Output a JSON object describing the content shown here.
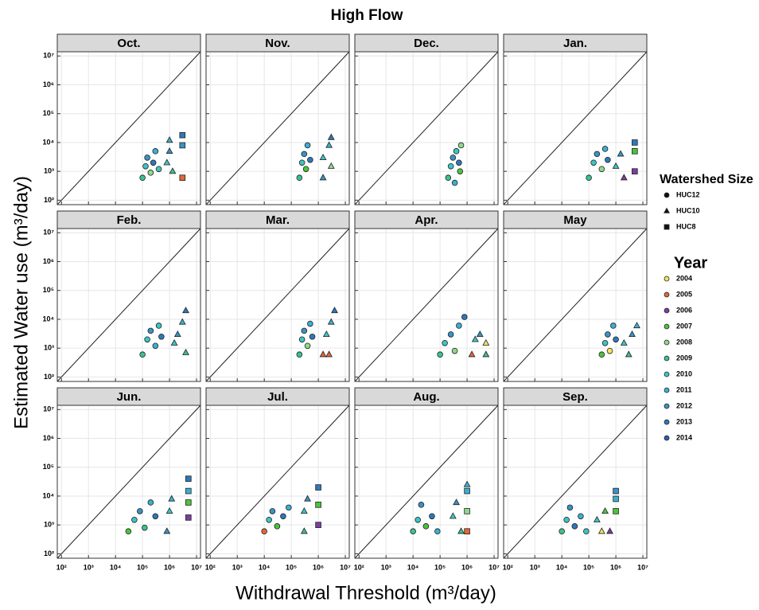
{
  "chart_data": {
    "type": "scatter",
    "title": "High Flow",
    "x_label": "Withdrawal Threshold (m³/day)",
    "y_label": "Estimated Water use (m³/day)",
    "log_scale": true,
    "grid": true,
    "diagonal": true,
    "xlim": [
      70,
      14000000
    ],
    "ylim": [
      70,
      14000000
    ],
    "xticks": [
      {
        "value": 100,
        "label": "10²"
      },
      {
        "value": 1000,
        "label": "10³"
      },
      {
        "value": 10000,
        "label": "10⁴"
      },
      {
        "value": 100000,
        "label": "10⁵"
      },
      {
        "value": 1000000,
        "label": "10⁶"
      },
      {
        "value": 10000000,
        "label": "10⁷"
      }
    ],
    "yticks": [
      {
        "value": 100,
        "label": "10²"
      },
      {
        "value": 1000,
        "label": "10³"
      },
      {
        "value": 10000,
        "label": "10⁴"
      },
      {
        "value": 100000,
        "label": "10⁵"
      },
      {
        "value": 1000000,
        "label": "10⁶"
      },
      {
        "value": 10000000,
        "label": "10⁷"
      }
    ],
    "legend_watershed": {
      "title": "Watershed Size",
      "items": [
        {
          "name": "HUC12",
          "shape": "circle"
        },
        {
          "name": "HUC10",
          "shape": "triangle"
        },
        {
          "name": "HUC8",
          "shape": "square"
        }
      ]
    },
    "legend_year": {
      "title": "Year",
      "items": [
        {
          "name": "2004",
          "color": "#f2e35e"
        },
        {
          "name": "2005",
          "color": "#e0673a"
        },
        {
          "name": "2006",
          "color": "#7b3fa0"
        },
        {
          "name": "2007",
          "color": "#4cc43a"
        },
        {
          "name": "2008",
          "color": "#8fd98a"
        },
        {
          "name": "2009",
          "color": "#3cc08f"
        },
        {
          "name": "2010",
          "color": "#3cc4c4"
        },
        {
          "name": "2011",
          "color": "#3ab0d0"
        },
        {
          "name": "2012",
          "color": "#3a92c4"
        },
        {
          "name": "2013",
          "color": "#2f78b8"
        },
        {
          "name": "2014",
          "color": "#2a5ea8"
        }
      ]
    },
    "panels": [
      {
        "title": "Oct.",
        "points": [
          [
            100000,
            600,
            "HUC12",
            "2009"
          ],
          [
            130000,
            1500,
            "HUC12",
            "2010"
          ],
          [
            150000,
            3000,
            "HUC12",
            "2012"
          ],
          [
            200000,
            900,
            "HUC12",
            "2008"
          ],
          [
            250000,
            2000,
            "HUC12",
            "2013"
          ],
          [
            300000,
            5000,
            "HUC12",
            "2011"
          ],
          [
            400000,
            1200,
            "HUC12",
            "2010"
          ],
          [
            800000,
            2000,
            "HUC10",
            "2010"
          ],
          [
            1000000,
            5000,
            "HUC10",
            "2012"
          ],
          [
            1000000,
            12000,
            "HUC10",
            "2011"
          ],
          [
            1300000,
            1000,
            "HUC10",
            "2009"
          ],
          [
            3000000,
            600,
            "HUC8",
            "2005"
          ],
          [
            3000000,
            8000,
            "HUC8",
            "2012"
          ],
          [
            3000000,
            18000,
            "HUC8",
            "2013"
          ]
        ]
      },
      {
        "title": "Nov.",
        "points": [
          [
            200000,
            600,
            "HUC12",
            "2009"
          ],
          [
            250000,
            2000,
            "HUC12",
            "2010"
          ],
          [
            300000,
            4000,
            "HUC12",
            "2012"
          ],
          [
            350000,
            1200,
            "HUC12",
            "2007"
          ],
          [
            400000,
            8000,
            "HUC12",
            "2011"
          ],
          [
            500000,
            2500,
            "HUC12",
            "2013"
          ],
          [
            1500000,
            600,
            "HUC10",
            "2012"
          ],
          [
            1500000,
            3000,
            "HUC10",
            "2010"
          ],
          [
            2500000,
            8000,
            "HUC10",
            "2011"
          ],
          [
            3000000,
            15000,
            "HUC10",
            "2013"
          ],
          [
            3000000,
            1500,
            "HUC10",
            "2008"
          ]
        ]
      },
      {
        "title": "Dec.",
        "points": [
          [
            200000,
            600,
            "HUC12",
            "2009"
          ],
          [
            250000,
            1500,
            "HUC12",
            "2010"
          ],
          [
            300000,
            3000,
            "HUC12",
            "2012"
          ],
          [
            350000,
            400,
            "HUC12",
            "2011"
          ],
          [
            400000,
            5000,
            "HUC12",
            "2010"
          ],
          [
            500000,
            2000,
            "HUC12",
            "2013"
          ],
          [
            600000,
            8000,
            "HUC12",
            "2008"
          ],
          [
            550000,
            1000,
            "HUC12",
            "2007"
          ]
        ]
      },
      {
        "title": "Jan.",
        "points": [
          [
            100000,
            600,
            "HUC12",
            "2009"
          ],
          [
            150000,
            2000,
            "HUC12",
            "2010"
          ],
          [
            200000,
            4000,
            "HUC12",
            "2012"
          ],
          [
            300000,
            1200,
            "HUC12",
            "2008"
          ],
          [
            400000,
            6000,
            "HUC12",
            "2011"
          ],
          [
            500000,
            2500,
            "HUC12",
            "2013"
          ],
          [
            1000000,
            1500,
            "HUC10",
            "2010"
          ],
          [
            1500000,
            4000,
            "HUC10",
            "2012"
          ],
          [
            2000000,
            600,
            "HUC10",
            "2006"
          ],
          [
            5000000,
            1000,
            "HUC8",
            "2006"
          ],
          [
            5000000,
            5000,
            "HUC8",
            "2007"
          ],
          [
            5000000,
            10000,
            "HUC8",
            "2013"
          ]
        ]
      },
      {
        "title": "Feb.",
        "points": [
          [
            100000,
            600,
            "HUC12",
            "2009"
          ],
          [
            150000,
            2000,
            "HUC12",
            "2010"
          ],
          [
            200000,
            4000,
            "HUC12",
            "2012"
          ],
          [
            300000,
            1200,
            "HUC12",
            "2011"
          ],
          [
            400000,
            6000,
            "HUC12",
            "2010"
          ],
          [
            500000,
            2500,
            "HUC12",
            "2013"
          ],
          [
            1500000,
            1500,
            "HUC10",
            "2010"
          ],
          [
            2000000,
            3000,
            "HUC10",
            "2012"
          ],
          [
            3000000,
            8000,
            "HUC10",
            "2011"
          ],
          [
            4000000,
            20000,
            "HUC10",
            "2013"
          ],
          [
            4000000,
            700,
            "HUC10",
            "2009"
          ]
        ]
      },
      {
        "title": "Mar.",
        "points": [
          [
            200000,
            600,
            "HUC12",
            "2009"
          ],
          [
            250000,
            2000,
            "HUC12",
            "2010"
          ],
          [
            300000,
            4000,
            "HUC12",
            "2012"
          ],
          [
            400000,
            1200,
            "HUC12",
            "2008"
          ],
          [
            500000,
            7000,
            "HUC12",
            "2011"
          ],
          [
            600000,
            2500,
            "HUC12",
            "2013"
          ],
          [
            1500000,
            600,
            "HUC10",
            "2005"
          ],
          [
            2000000,
            3000,
            "HUC10",
            "2010"
          ],
          [
            2500000,
            600,
            "HUC10",
            "2005"
          ],
          [
            3000000,
            8000,
            "HUC10",
            "2011"
          ],
          [
            4000000,
            20000,
            "HUC10",
            "2013"
          ]
        ]
      },
      {
        "title": "Apr.",
        "points": [
          [
            100000,
            600,
            "HUC12",
            "2009"
          ],
          [
            150000,
            1500,
            "HUC12",
            "2010"
          ],
          [
            250000,
            3000,
            "HUC12",
            "2012"
          ],
          [
            350000,
            800,
            "HUC12",
            "2008"
          ],
          [
            500000,
            6000,
            "HUC12",
            "2011"
          ],
          [
            800000,
            12000,
            "HUC12",
            "2013"
          ],
          [
            1500000,
            600,
            "HUC10",
            "2005"
          ],
          [
            2000000,
            2000,
            "HUC10",
            "2010"
          ],
          [
            3000000,
            3000,
            "HUC10",
            "2012"
          ],
          [
            5000000,
            1500,
            "HUC10",
            "2004"
          ],
          [
            5000000,
            600,
            "HUC10",
            "2009"
          ]
        ]
      },
      {
        "title": "May",
        "points": [
          [
            300000,
            600,
            "HUC12",
            "2007"
          ],
          [
            400000,
            1500,
            "HUC12",
            "2010"
          ],
          [
            500000,
            3000,
            "HUC12",
            "2012"
          ],
          [
            600000,
            800,
            "HUC12",
            "2004"
          ],
          [
            800000,
            6000,
            "HUC12",
            "2011"
          ],
          [
            1000000,
            2000,
            "HUC12",
            "2013"
          ],
          [
            2000000,
            1500,
            "HUC10",
            "2010"
          ],
          [
            3000000,
            600,
            "HUC10",
            "2009"
          ],
          [
            4000000,
            3000,
            "HUC10",
            "2012"
          ],
          [
            6000000,
            6000,
            "HUC10",
            "2011"
          ]
        ]
      },
      {
        "title": "Jun.",
        "points": [
          [
            30000,
            600,
            "HUC12",
            "2007"
          ],
          [
            50000,
            1500,
            "HUC12",
            "2010"
          ],
          [
            80000,
            3000,
            "HUC12",
            "2012"
          ],
          [
            120000,
            800,
            "HUC12",
            "2009"
          ],
          [
            200000,
            6000,
            "HUC12",
            "2011"
          ],
          [
            300000,
            2000,
            "HUC12",
            "2013"
          ],
          [
            800000,
            600,
            "HUC10",
            "2012"
          ],
          [
            1000000,
            3000,
            "HUC10",
            "2010"
          ],
          [
            1200000,
            8000,
            "HUC10",
            "2011"
          ],
          [
            5000000,
            1800,
            "HUC8",
            "2006"
          ],
          [
            5000000,
            6000,
            "HUC8",
            "2007"
          ],
          [
            5000000,
            15000,
            "HUC8",
            "2011"
          ],
          [
            5000000,
            40000,
            "HUC8",
            "2013"
          ]
        ]
      },
      {
        "title": "Jul.",
        "points": [
          [
            10000,
            600,
            "HUC12",
            "2005"
          ],
          [
            15000,
            1500,
            "HUC12",
            "2010"
          ],
          [
            20000,
            3000,
            "HUC12",
            "2012"
          ],
          [
            30000,
            900,
            "HUC12",
            "2007"
          ],
          [
            50000,
            2000,
            "HUC12",
            "2013"
          ],
          [
            80000,
            4000,
            "HUC12",
            "2011"
          ],
          [
            300000,
            600,
            "HUC10",
            "2009"
          ],
          [
            300000,
            3000,
            "HUC10",
            "2010"
          ],
          [
            400000,
            8000,
            "HUC10",
            "2012"
          ],
          [
            1000000,
            1000,
            "HUC8",
            "2006"
          ],
          [
            1000000,
            5000,
            "HUC8",
            "2007"
          ],
          [
            1000000,
            20000,
            "HUC8",
            "2013"
          ]
        ]
      },
      {
        "title": "Aug.",
        "points": [
          [
            10000,
            600,
            "HUC12",
            "2009"
          ],
          [
            15000,
            1500,
            "HUC12",
            "2010"
          ],
          [
            20000,
            5000,
            "HUC12",
            "2012"
          ],
          [
            30000,
            900,
            "HUC12",
            "2007"
          ],
          [
            50000,
            2000,
            "HUC12",
            "2013"
          ],
          [
            80000,
            600,
            "HUC12",
            "2011"
          ],
          [
            300000,
            2000,
            "HUC10",
            "2010"
          ],
          [
            400000,
            6000,
            "HUC10",
            "2012"
          ],
          [
            600000,
            600,
            "HUC10",
            "2009"
          ],
          [
            1000000,
            25000,
            "HUC10",
            "2011"
          ],
          [
            1000000,
            600,
            "HUC8",
            "2005"
          ],
          [
            1000000,
            3000,
            "HUC8",
            "2008"
          ],
          [
            1000000,
            15000,
            "HUC8",
            "2011"
          ]
        ]
      },
      {
        "title": "Sep.",
        "points": [
          [
            10000,
            600,
            "HUC12",
            "2009"
          ],
          [
            15000,
            1500,
            "HUC12",
            "2010"
          ],
          [
            20000,
            4000,
            "HUC12",
            "2012"
          ],
          [
            30000,
            900,
            "HUC12",
            "2013"
          ],
          [
            50000,
            2000,
            "HUC12",
            "2011"
          ],
          [
            80000,
            600,
            "HUC12",
            "2010"
          ],
          [
            200000,
            1500,
            "HUC10",
            "2010"
          ],
          [
            300000,
            600,
            "HUC10",
            "2004"
          ],
          [
            400000,
            3000,
            "HUC10",
            "2007"
          ],
          [
            600000,
            600,
            "HUC10",
            "2006"
          ],
          [
            1000000,
            3000,
            "HUC8",
            "2007"
          ],
          [
            1000000,
            8000,
            "HUC8",
            "2011"
          ],
          [
            1000000,
            15000,
            "HUC8",
            "2012"
          ]
        ]
      }
    ]
  }
}
